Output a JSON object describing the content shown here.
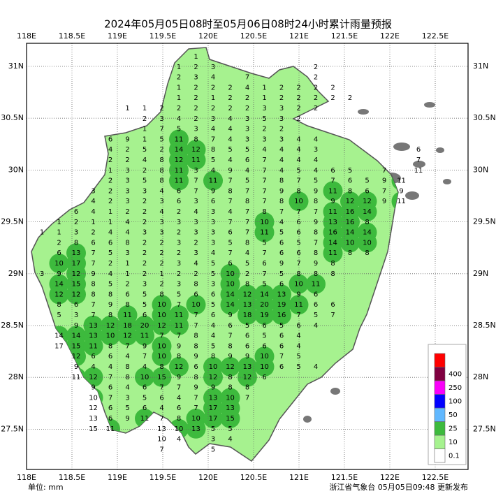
{
  "map": {
    "title": "2024年05月05日08时至05月06日08时24小时累计雨量预报",
    "lon_labels": [
      "118E",
      "118.5E",
      "119E",
      "119.5E",
      "120E",
      "120.5E",
      "121E",
      "121.5E",
      "122E",
      "122.5E"
    ],
    "lat_labels": [
      "31N",
      "30.5N",
      "30N",
      "29.5N",
      "29N",
      "28.5N",
      "28N",
      "27.5N"
    ],
    "footer_left": "单位: mm",
    "footer_right": "浙江省气象台 05月05日09:48 更新发布",
    "legend": {
      "thresholds": [
        0.1,
        10,
        25,
        50,
        100,
        250,
        400
      ],
      "colors": [
        "#ffffff",
        "#a6f28f",
        "#3dba3d",
        "#61b8ff",
        "#0000ff",
        "#fa00fa",
        "#800040",
        "#ff0000"
      ]
    },
    "stations": [
      [
        null,
        null,
        null,
        null,
        null,
        null,
        null,
        null,
        null,
        1,
        null,
        null,
        null,
        null,
        null,
        null,
        null,
        null,
        null,
        null,
        null,
        null,
        null
      ],
      [
        null,
        null,
        null,
        null,
        null,
        null,
        null,
        null,
        1,
        2,
        3,
        null,
        null,
        null,
        null,
        null,
        2,
        null,
        null,
        null,
        null,
        null,
        null
      ],
      [
        null,
        null,
        null,
        null,
        null,
        null,
        null,
        null,
        2,
        3,
        4,
        null,
        7,
        null,
        null,
        null,
        2,
        null,
        null,
        null,
        null,
        null,
        null
      ],
      [
        null,
        null,
        null,
        null,
        null,
        null,
        null,
        null,
        1,
        2,
        2,
        2,
        4,
        1,
        2,
        2,
        2,
        2,
        null,
        null,
        null,
        null,
        null
      ],
      [
        null,
        null,
        null,
        null,
        null,
        null,
        null,
        null,
        1,
        2,
        1,
        2,
        2,
        1,
        2,
        2,
        2,
        2,
        2,
        null,
        null,
        null,
        null
      ],
      [
        null,
        null,
        null,
        null,
        null,
        1,
        1,
        2,
        2,
        2,
        2,
        2,
        2,
        3,
        3,
        2,
        2,
        null,
        null,
        null,
        null,
        null,
        null
      ],
      [
        null,
        null,
        null,
        null,
        null,
        null,
        2,
        3,
        4,
        2,
        3,
        4,
        3,
        5,
        3,
        2,
        null,
        null,
        null,
        null,
        null,
        null,
        null
      ],
      [
        null,
        null,
        null,
        null,
        null,
        null,
        1,
        7,
        5,
        3,
        4,
        4,
        3,
        2,
        2,
        null,
        null,
        null,
        null,
        null,
        null,
        null,
        null
      ],
      [
        null,
        null,
        null,
        null,
        6,
        9,
        1,
        5,
        11,
        8,
        7,
        4,
        3,
        3,
        3,
        4,
        4,
        null,
        null,
        null,
        null,
        null,
        null
      ],
      [
        null,
        null,
        null,
        null,
        4,
        2,
        5,
        2,
        14,
        12,
        8,
        5,
        5,
        4,
        4,
        4,
        3,
        null,
        null,
        null,
        null,
        null,
        6
      ],
      [
        null,
        null,
        null,
        null,
        2,
        2,
        4,
        8,
        12,
        11,
        5,
        4,
        6,
        7,
        4,
        4,
        4,
        null,
        null,
        null,
        null,
        null,
        7
      ],
      [
        null,
        null,
        null,
        null,
        1,
        3,
        2,
        8,
        11,
        3,
        4,
        9,
        4,
        7,
        4,
        5,
        4,
        6,
        5,
        null,
        7,
        null,
        11
      ],
      [
        null,
        null,
        null,
        null,
        2,
        3,
        5,
        8,
        11,
        7,
        11,
        7,
        5,
        7,
        8,
        7,
        5,
        7,
        6,
        5,
        9,
        11,
        null
      ],
      [
        null,
        null,
        null,
        3,
        2,
        3,
        3,
        4,
        6,
        7,
        9,
        8,
        7,
        7,
        9,
        8,
        9,
        11,
        8,
        6,
        7,
        9,
        null
      ],
      [
        null,
        null,
        null,
        4,
        2,
        3,
        2,
        3,
        6,
        3,
        6,
        7,
        8,
        7,
        8,
        10,
        8,
        9,
        12,
        12,
        9,
        11,
        null
      ],
      [
        null,
        null,
        6,
        4,
        1,
        2,
        2,
        4,
        2,
        4,
        3,
        4,
        7,
        8,
        7,
        7,
        7,
        11,
        16,
        14,
        null,
        null,
        null
      ],
      [
        null,
        1,
        2,
        1,
        1,
        4,
        2,
        3,
        3,
        3,
        3,
        7,
        7,
        10,
        4,
        6,
        9,
        13,
        16,
        8,
        null,
        null,
        null
      ],
      [
        1,
        1,
        3,
        2,
        4,
        4,
        3,
        3,
        2,
        3,
        3,
        6,
        7,
        11,
        5,
        6,
        8,
        16,
        14,
        14,
        null,
        null,
        null
      ],
      [
        null,
        2,
        8,
        6,
        6,
        8,
        2,
        2,
        3,
        2,
        3,
        5,
        8,
        5,
        6,
        5,
        7,
        14,
        10,
        10,
        null,
        null,
        null
      ],
      [
        null,
        6,
        13,
        7,
        5,
        3,
        2,
        2,
        2,
        3,
        4,
        7,
        4,
        7,
        6,
        6,
        8,
        11,
        8,
        8,
        null,
        null,
        null
      ],
      [
        null,
        10,
        17,
        7,
        2,
        1,
        2,
        2,
        3,
        4,
        5,
        6,
        5,
        6,
        9,
        7,
        9,
        8,
        null,
        null,
        null,
        null,
        null
      ],
      [
        3,
        9,
        12,
        9,
        4,
        1,
        2,
        1,
        2,
        2,
        5,
        10,
        2,
        7,
        5,
        8,
        8,
        8,
        null,
        null,
        null,
        null,
        null
      ],
      [
        null,
        14,
        15,
        8,
        5,
        2,
        3,
        2,
        3,
        8,
        3,
        10,
        8,
        5,
        6,
        10,
        11,
        null,
        null,
        null,
        null,
        null,
        null
      ],
      [
        null,
        12,
        12,
        8,
        8,
        6,
        5,
        8,
        5,
        6,
        6,
        14,
        12,
        14,
        13,
        9,
        6,
        null,
        null,
        null,
        null,
        null,
        null
      ],
      [
        null,
        8,
        6,
        7,
        9,
        8,
        5,
        10,
        7,
        10,
        5,
        14,
        13,
        20,
        19,
        11,
        6,
        6,
        null,
        null,
        null,
        null,
        null
      ],
      [
        null,
        5,
        3,
        7,
        8,
        11,
        6,
        10,
        11,
        7,
        6,
        9,
        18,
        19,
        16,
        7,
        5,
        7,
        null,
        null,
        null,
        null,
        null
      ],
      [
        null,
        null,
        9,
        13,
        12,
        18,
        20,
        12,
        11,
        7,
        4,
        6,
        5,
        6,
        5,
        6,
        4,
        null,
        null,
        null,
        null,
        null,
        null
      ],
      [
        null,
        14,
        14,
        13,
        10,
        12,
        11,
        7,
        7,
        8,
        4,
        7,
        6,
        5,
        6,
        4,
        null,
        null,
        null,
        null,
        null,
        null,
        null
      ],
      [
        null,
        17,
        15,
        11,
        8,
        7,
        9,
        10,
        9,
        8,
        5,
        8,
        6,
        6,
        6,
        4,
        null,
        null,
        null,
        null,
        null,
        null,
        null
      ],
      [
        null,
        null,
        12,
        6,
        6,
        4,
        7,
        10,
        8,
        9,
        8,
        9,
        9,
        10,
        7,
        5,
        null,
        null,
        null,
        null,
        null,
        null,
        null
      ],
      [
        null,
        null,
        9,
        4,
        4,
        8,
        4,
        8,
        12,
        6,
        10,
        12,
        13,
        10,
        6,
        5,
        4,
        null,
        null,
        null,
        null,
        null,
        null
      ],
      [
        null,
        null,
        11,
        12,
        7,
        8,
        10,
        15,
        9,
        8,
        12,
        8,
        12,
        6,
        null,
        null,
        null,
        null,
        null,
        null,
        null,
        null,
        null
      ],
      [
        null,
        null,
        null,
        9,
        6,
        4,
        6,
        7,
        7,
        9,
        9,
        8,
        8,
        null,
        null,
        null,
        null,
        null,
        null,
        null,
        null,
        null,
        null
      ],
      [
        null,
        null,
        null,
        10,
        7,
        3,
        5,
        6,
        4,
        7,
        13,
        10,
        7,
        null,
        null,
        null,
        null,
        null,
        null,
        null,
        null,
        null,
        null
      ],
      [
        null,
        null,
        null,
        12,
        6,
        5,
        6,
        4,
        6,
        7,
        17,
        13,
        null,
        null,
        null,
        null,
        null,
        null,
        null,
        null,
        null,
        null,
        null
      ],
      [
        null,
        null,
        null,
        13,
        6,
        9,
        11,
        7,
        8,
        10,
        17,
        15,
        null,
        null,
        null,
        null,
        null,
        null,
        null,
        null,
        null,
        null,
        null
      ],
      [
        null,
        null,
        null,
        15,
        11,
        null,
        null,
        13,
        10,
        13,
        5,
        5,
        null,
        null,
        null,
        null,
        null,
        null,
        null,
        null,
        null,
        null,
        null
      ],
      [
        null,
        null,
        null,
        null,
        null,
        null,
        null,
        10,
        4,
        null,
        3,
        4,
        null,
        null,
        null,
        null,
        null,
        null,
        null,
        null,
        null,
        null,
        null
      ],
      [
        null,
        null,
        null,
        null,
        null,
        null,
        null,
        7,
        null,
        null,
        5,
        null,
        null,
        null,
        null,
        null,
        null,
        null,
        null,
        null,
        null,
        null,
        null
      ]
    ]
  }
}
